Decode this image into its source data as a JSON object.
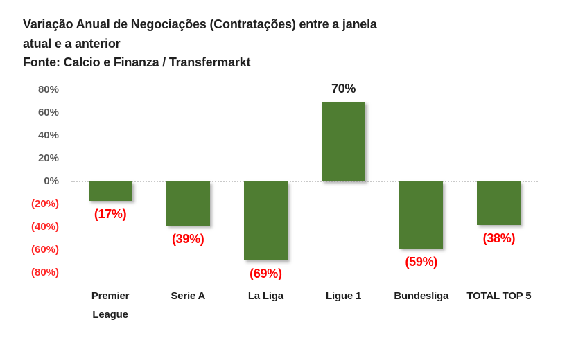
{
  "chart_data": {
    "type": "bar",
    "title": "Variação Anual de Negociações (Contratações) entre a janela atual e a anterior",
    "title_lines": [
      "Variação Anual de Negociações (Contratações) entre a janela",
      "atual e a anterior"
    ],
    "source": "Fonte: Calcio e Finanza / Transfermarkt",
    "categories": [
      "Premier League",
      "Serie A",
      "La Liga",
      "Ligue 1",
      "Bundesliga",
      "TOTAL TOP 5"
    ],
    "values": [
      -17,
      -39,
      -69,
      70,
      -59,
      -38
    ],
    "value_labels": [
      "(17%)",
      "(39%)",
      "(69%)",
      "70%",
      "(59%)",
      "(38%)"
    ],
    "xlabel": "",
    "ylabel": "",
    "ylim": [
      -80,
      80
    ],
    "grid": "zero-line-only",
    "legend": "none",
    "y_axis": {
      "ticks": [
        {
          "value": 80,
          "label": "80%"
        },
        {
          "value": 60,
          "label": "60%"
        },
        {
          "value": 40,
          "label": "40%"
        },
        {
          "value": 20,
          "label": "20%"
        },
        {
          "value": 0,
          "label": "0%"
        },
        {
          "value": -20,
          "label": "(20%)"
        },
        {
          "value": -40,
          "label": "(40%)"
        },
        {
          "value": -60,
          "label": "(60%)"
        },
        {
          "value": -80,
          "label": "(80%)"
        }
      ]
    },
    "colors": {
      "bar": "#4f7d32",
      "title_text": "#1f1f1f",
      "category_text": "#1f1f1f",
      "positive_label_text": "#1f1f1f",
      "negative_label_text": "#ff0000",
      "tick_positive_text": "#595959",
      "tick_negative_text": "#ff2626",
      "zero_line": "#c9c9c9"
    }
  }
}
